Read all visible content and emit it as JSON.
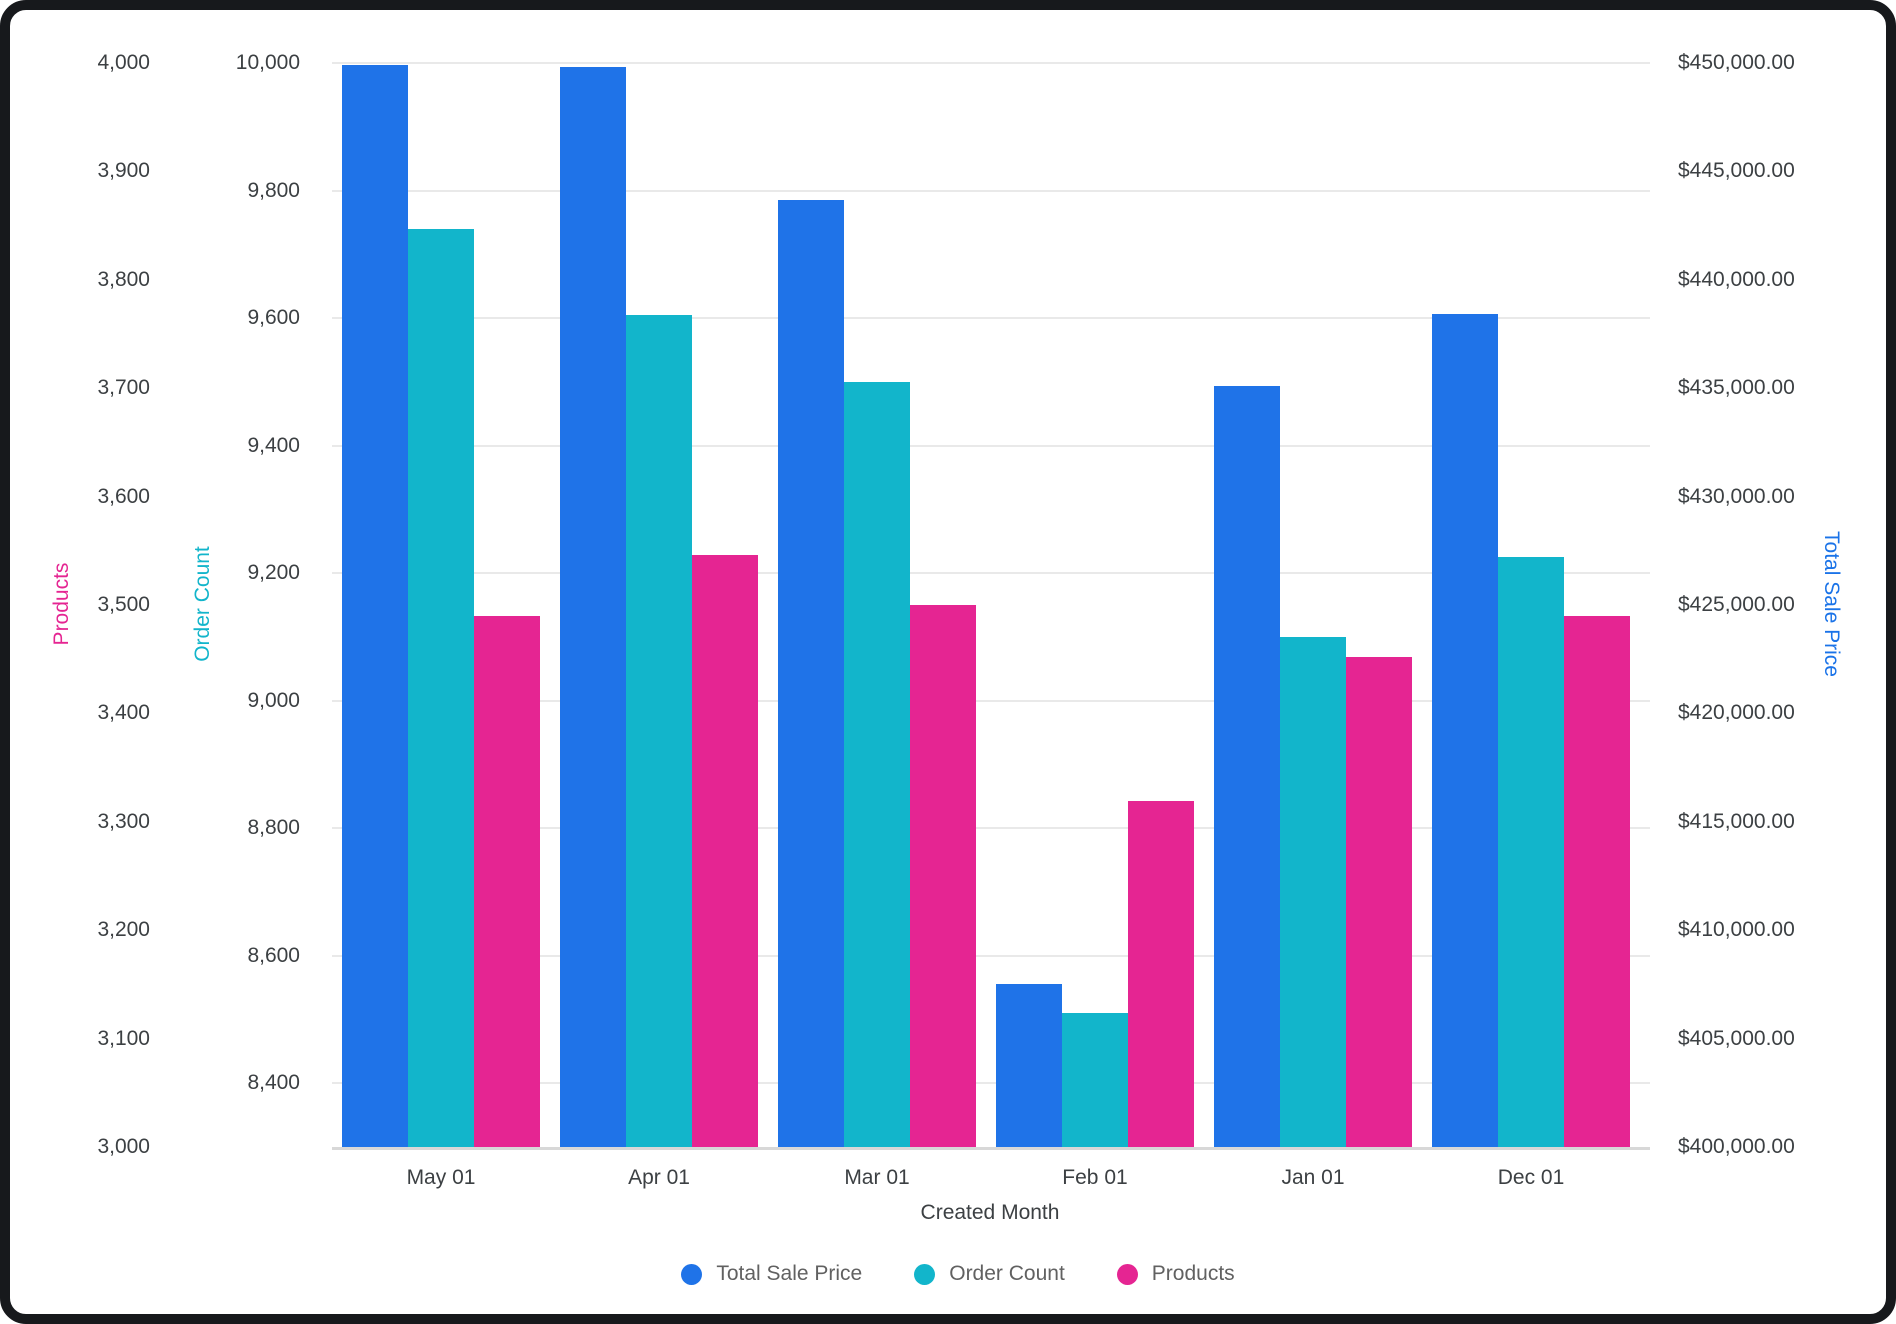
{
  "chart_data": {
    "type": "bar",
    "title": "",
    "categories": [
      "May 01",
      "Apr 01",
      "Mar 01",
      "Feb 01",
      "Jan 01",
      "Dec 01"
    ],
    "x_axis": {
      "label": "Created Month"
    },
    "series": [
      {
        "name": "Total Sale Price",
        "axis": "total_sale",
        "color": "#1F73E8",
        "values": [
          449900,
          449800,
          443700,
          407500,
          435100,
          438400
        ]
      },
      {
        "name": "Order Count",
        "axis": "order_count",
        "color": "#12B5CB",
        "values": [
          9740,
          9605,
          9500,
          8510,
          9100,
          9225
        ]
      },
      {
        "name": "Products",
        "axis": "products",
        "color": "#E52592",
        "values": [
          3490,
          3546,
          3500,
          3319,
          3452,
          3490
        ]
      }
    ],
    "axes": {
      "products": {
        "title": "Products",
        "color": "#E52592",
        "side": "left-outer",
        "min": 3000,
        "max": 4000,
        "ticks": [
          3000,
          3100,
          3200,
          3300,
          3400,
          3500,
          3600,
          3700,
          3800,
          3900,
          4000
        ],
        "tick_labels": [
          "3,000",
          "3,100",
          "3,200",
          "3,300",
          "3,400",
          "3,500",
          "3,600",
          "3,700",
          "3,800",
          "3,900",
          "4,000"
        ]
      },
      "order_count": {
        "title": "Order Count",
        "color": "#12B5CB",
        "side": "left-inner",
        "min": 8300,
        "max": 10000.5,
        "gridlines": true,
        "ticks": [
          8400,
          8600,
          8800,
          9000,
          9200,
          9400,
          9600,
          9800,
          10000
        ],
        "tick_labels": [
          "8,400",
          "8,600",
          "8,800",
          "9,000",
          "9,200",
          "9,400",
          "9,600",
          "9,800",
          "10,000"
        ]
      },
      "total_sale": {
        "title": "Total Sale Price",
        "color": "#1A73E8",
        "side": "right",
        "min": 400000,
        "max": 450000,
        "ticks": [
          400000,
          405000,
          410000,
          415000,
          420000,
          425000,
          430000,
          435000,
          440000,
          445000,
          450000
        ],
        "tick_labels": [
          "$400,000.00",
          "$405,000.00",
          "$410,000.00",
          "$415,000.00",
          "$420,000.00",
          "$425,000.00",
          "$430,000.00",
          "$435,000.00",
          "$440,000.00",
          "$445,000.00",
          "$450,000.00"
        ]
      }
    },
    "legend": {
      "position": "bottom",
      "entries": [
        "Total Sale Price",
        "Order Count",
        "Products"
      ]
    }
  },
  "colors": {
    "series_blue": "#1F73E8",
    "series_teal": "#12B5CB",
    "series_pink": "#E52592",
    "tick_text": "#3C4043",
    "legend_text": "#616161",
    "gridline": "#E9E9E9",
    "frame": "#17191C"
  }
}
